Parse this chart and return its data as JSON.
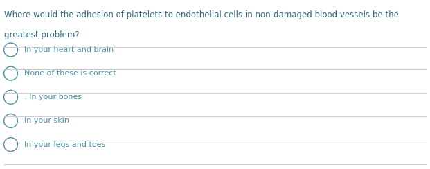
{
  "question_line1": "Where would the adhesion of platelets to endothelial cells in non-damaged blood vessels be the",
  "question_line2": "greatest problem?",
  "question_color": "#2e6b7a",
  "options": [
    "In your heart and brain",
    "None of these is correct",
    ". In your bones",
    "In your skin",
    "In your legs and toes"
  ],
  "option_color": "#4a90a4",
  "circle_color": "#4a90a4",
  "divider_color": "#cccccc",
  "background_color": "#ffffff",
  "fig_width": 6.21,
  "fig_height": 2.44,
  "dpi": 100
}
